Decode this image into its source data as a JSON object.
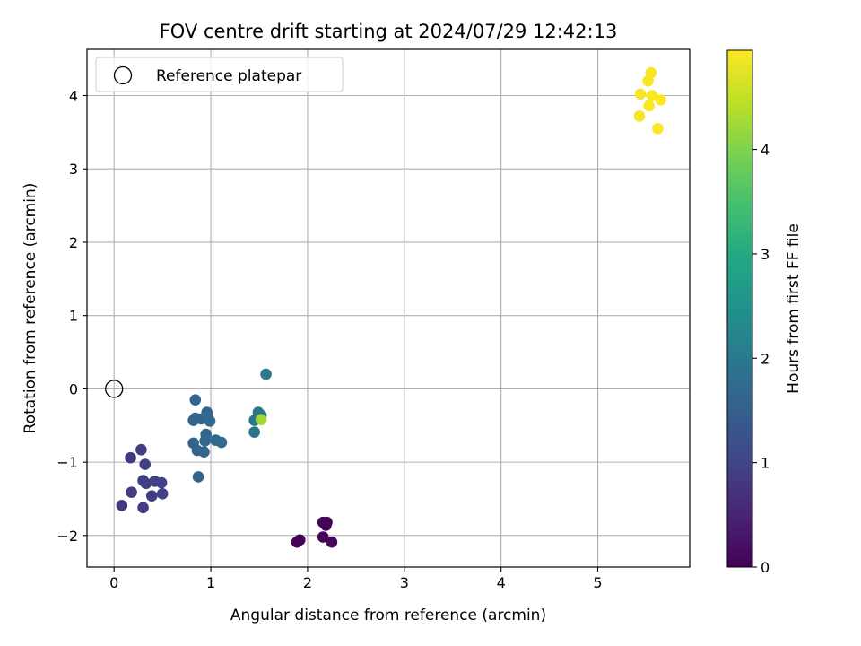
{
  "chart_data": {
    "type": "scatter",
    "title": "FOV centre drift starting at 2024/07/29 12:42:13",
    "xlabel": "Angular distance from reference (arcmin)",
    "ylabel": "Rotation from reference (arcmin)",
    "xlim": [
      -0.28,
      5.95
    ],
    "ylim": [
      -2.43,
      4.63
    ],
    "xticks": [
      0,
      1,
      2,
      3,
      4,
      5
    ],
    "yticks": [
      -2,
      -1,
      0,
      1,
      2,
      3,
      4
    ],
    "grid": true,
    "legend": {
      "placement": "top-left",
      "entries": [
        "Reference platepar"
      ]
    },
    "reference_point": {
      "x": 0,
      "y": 0
    },
    "colorbar": {
      "label": "Hours from first FF file",
      "colormap": "viridis",
      "range": [
        0,
        4.95
      ],
      "ticks": [
        0,
        1,
        2,
        3,
        4
      ]
    },
    "points": [
      {
        "x": 1.89,
        "y": -2.09,
        "t": 0.02
      },
      {
        "x": 1.92,
        "y": -2.06,
        "t": 0.03
      },
      {
        "x": 2.16,
        "y": -1.82,
        "t": 0.04
      },
      {
        "x": 2.2,
        "y": -1.82,
        "t": 0.05
      },
      {
        "x": 2.19,
        "y": -1.86,
        "t": 0.06
      },
      {
        "x": 2.16,
        "y": -2.02,
        "t": 0.07
      },
      {
        "x": 2.25,
        "y": -2.09,
        "t": 0.08
      },
      {
        "x": 0.08,
        "y": -1.59,
        "t": 0.85
      },
      {
        "x": 0.17,
        "y": -0.94,
        "t": 0.85
      },
      {
        "x": 0.18,
        "y": -1.41,
        "t": 0.87
      },
      {
        "x": 0.28,
        "y": -0.83,
        "t": 0.88
      },
      {
        "x": 0.3,
        "y": -1.25,
        "t": 0.89
      },
      {
        "x": 0.3,
        "y": -1.62,
        "t": 0.9
      },
      {
        "x": 0.32,
        "y": -1.03,
        "t": 0.91
      },
      {
        "x": 0.33,
        "y": -1.29,
        "t": 0.92
      },
      {
        "x": 0.39,
        "y": -1.46,
        "t": 0.93
      },
      {
        "x": 0.42,
        "y": -1.26,
        "t": 0.94
      },
      {
        "x": 0.49,
        "y": -1.28,
        "t": 0.95
      },
      {
        "x": 0.5,
        "y": -1.43,
        "t": 0.96
      },
      {
        "x": 0.82,
        "y": -0.74,
        "t": 1.55
      },
      {
        "x": 0.82,
        "y": -0.43,
        "t": 1.56
      },
      {
        "x": 0.84,
        "y": -0.4,
        "t": 1.57
      },
      {
        "x": 0.84,
        "y": -0.15,
        "t": 1.58
      },
      {
        "x": 0.86,
        "y": -0.84,
        "t": 1.59
      },
      {
        "x": 0.87,
        "y": -1.2,
        "t": 1.6
      },
      {
        "x": 0.9,
        "y": -0.41,
        "t": 1.61
      },
      {
        "x": 0.93,
        "y": -0.86,
        "t": 1.62
      },
      {
        "x": 0.94,
        "y": -0.71,
        "t": 1.63
      },
      {
        "x": 0.95,
        "y": -0.62,
        "t": 1.64
      },
      {
        "x": 0.96,
        "y": -0.32,
        "t": 1.65
      },
      {
        "x": 0.97,
        "y": -0.38,
        "t": 1.66
      },
      {
        "x": 0.99,
        "y": -0.44,
        "t": 1.67
      },
      {
        "x": 1.05,
        "y": -0.7,
        "t": 1.7
      },
      {
        "x": 1.11,
        "y": -0.73,
        "t": 1.72
      },
      {
        "x": 1.45,
        "y": -0.59,
        "t": 1.9
      },
      {
        "x": 1.45,
        "y": -0.43,
        "t": 1.92
      },
      {
        "x": 1.49,
        "y": -0.32,
        "t": 1.95
      },
      {
        "x": 1.52,
        "y": -0.36,
        "t": 1.98
      },
      {
        "x": 1.57,
        "y": 0.2,
        "t": 2.0
      },
      {
        "x": 1.52,
        "y": -0.42,
        "t": 4.25
      },
      {
        "x": 5.43,
        "y": 3.72,
        "t": 4.9
      },
      {
        "x": 5.44,
        "y": 4.02,
        "t": 4.9
      },
      {
        "x": 5.52,
        "y": 4.2,
        "t": 4.91
      },
      {
        "x": 5.53,
        "y": 3.86,
        "t": 4.92
      },
      {
        "x": 5.55,
        "y": 4.31,
        "t": 4.92
      },
      {
        "x": 5.56,
        "y": 4.0,
        "t": 4.93
      },
      {
        "x": 5.62,
        "y": 3.55,
        "t": 4.94
      },
      {
        "x": 5.65,
        "y": 3.94,
        "t": 4.95
      }
    ]
  }
}
